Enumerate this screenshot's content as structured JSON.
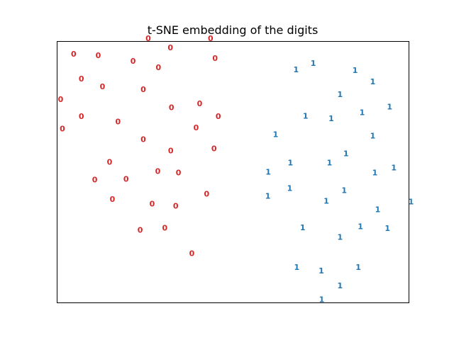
{
  "chart_data": {
    "type": "scatter",
    "title": "t-SNE embedding of the digits",
    "xlabel": "",
    "ylabel": "",
    "xlim": [
      0,
      1
    ],
    "ylim": [
      0,
      1
    ],
    "grid": false,
    "legend": false,
    "show_ticks": false,
    "colors": {
      "0": "#d62728",
      "1": "#1f77b4"
    },
    "series": [
      {
        "label": "0",
        "color": "#d62728",
        "points": [
          [
            0.259,
            1.011
          ],
          [
            0.322,
            0.976
          ],
          [
            0.436,
            1.011
          ],
          [
            0.047,
            0.951
          ],
          [
            0.117,
            0.946
          ],
          [
            0.216,
            0.924
          ],
          [
            0.288,
            0.9
          ],
          [
            0.449,
            0.935
          ],
          [
            0.069,
            0.857
          ],
          [
            0.129,
            0.827
          ],
          [
            0.245,
            0.816
          ],
          [
            0.01,
            0.778
          ],
          [
            0.325,
            0.746
          ],
          [
            0.405,
            0.762
          ],
          [
            0.069,
            0.713
          ],
          [
            0.173,
            0.692
          ],
          [
            0.458,
            0.713
          ],
          [
            0.395,
            0.67
          ],
          [
            0.015,
            0.665
          ],
          [
            0.245,
            0.624
          ],
          [
            0.323,
            0.581
          ],
          [
            0.446,
            0.589
          ],
          [
            0.149,
            0.538
          ],
          [
            0.286,
            0.503
          ],
          [
            0.345,
            0.497
          ],
          [
            0.107,
            0.47
          ],
          [
            0.196,
            0.473
          ],
          [
            0.425,
            0.416
          ],
          [
            0.157,
            0.395
          ],
          [
            0.27,
            0.378
          ],
          [
            0.337,
            0.37
          ],
          [
            0.236,
            0.278
          ],
          [
            0.306,
            0.286
          ],
          [
            0.383,
            0.189
          ]
        ]
      },
      {
        "label": "1",
        "color": "#1f77b4",
        "points": [
          [
            0.679,
            0.892
          ],
          [
            0.728,
            0.916
          ],
          [
            0.847,
            0.889
          ],
          [
            0.897,
            0.846
          ],
          [
            0.804,
            0.797
          ],
          [
            0.945,
            0.749
          ],
          [
            0.706,
            0.714
          ],
          [
            0.779,
            0.705
          ],
          [
            0.867,
            0.727
          ],
          [
            0.621,
            0.643
          ],
          [
            0.897,
            0.638
          ],
          [
            0.821,
            0.57
          ],
          [
            0.663,
            0.535
          ],
          [
            0.774,
            0.535
          ],
          [
            0.6,
            0.5
          ],
          [
            0.903,
            0.497
          ],
          [
            0.957,
            0.516
          ],
          [
            0.661,
            0.438
          ],
          [
            0.816,
            0.43
          ],
          [
            0.599,
            0.408
          ],
          [
            0.765,
            0.389
          ],
          [
            1.006,
            0.386
          ],
          [
            0.911,
            0.357
          ],
          [
            0.698,
            0.287
          ],
          [
            0.862,
            0.292
          ],
          [
            0.939,
            0.284
          ],
          [
            0.804,
            0.251
          ],
          [
            0.681,
            0.135
          ],
          [
            0.751,
            0.122
          ],
          [
            0.856,
            0.135
          ],
          [
            0.804,
            0.065
          ],
          [
            0.752,
            0.012
          ]
        ]
      }
    ]
  }
}
